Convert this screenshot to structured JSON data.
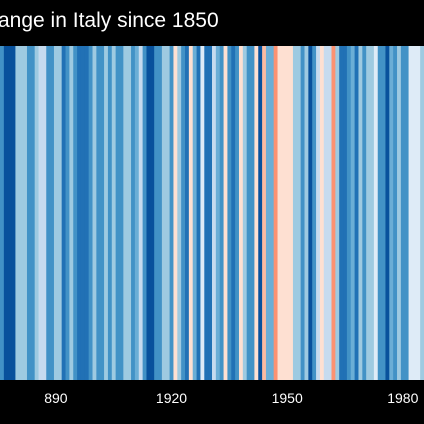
{
  "chart_data": {
    "type": "heatmap",
    "style": "warming stripes",
    "title": "ange in Italy since 1850",
    "x_first_year_visible": 1876,
    "x_tick_labels": [
      "890",
      "1920",
      "1950",
      "1980"
    ],
    "x_tick_years": [
      1890,
      1920,
      1950,
      1980
    ],
    "x_unit": "year",
    "values_note": "relative anomaly level per year, -1 (darkest blue) to +1 (darkest red)",
    "years": [
      1876,
      1877,
      1878,
      1879,
      1880,
      1881,
      1882,
      1883,
      1884,
      1885,
      1886,
      1887,
      1888,
      1889,
      1890,
      1891,
      1892,
      1893,
      1894,
      1895,
      1896,
      1897,
      1898,
      1899,
      1900,
      1901,
      1902,
      1903,
      1904,
      1905,
      1906,
      1907,
      1908,
      1909,
      1910,
      1911,
      1912,
      1913,
      1914,
      1915,
      1916,
      1917,
      1918,
      1919,
      1920,
      1921,
      1922,
      1923,
      1924,
      1925,
      1926,
      1927,
      1928,
      1929,
      1930,
      1931,
      1932,
      1933,
      1934,
      1935,
      1936,
      1937,
      1938,
      1939,
      1940,
      1941,
      1942,
      1943,
      1944,
      1945,
      1946,
      1947,
      1948,
      1949,
      1950,
      1951,
      1952,
      1953,
      1954,
      1955,
      1956,
      1957,
      1958,
      1959,
      1960,
      1961,
      1962,
      1963,
      1964,
      1965,
      1966,
      1967,
      1968,
      1969,
      1970,
      1971,
      1972,
      1973,
      1974,
      1975,
      1976,
      1977,
      1978,
      1979,
      1980,
      1981,
      1982,
      1983,
      1984,
      1985
    ],
    "values": [
      -0.55,
      -0.9,
      -0.9,
      -0.9,
      -0.2,
      -0.1,
      -0.1,
      -0.45,
      -0.45,
      -0.15,
      -0.05,
      -0.05,
      -0.45,
      -0.45,
      -0.15,
      -0.15,
      -0.75,
      -0.55,
      -0.2,
      -0.45,
      -0.75,
      -0.75,
      -0.75,
      -0.55,
      -0.2,
      -0.45,
      -0.45,
      -0.1,
      -0.45,
      -0.2,
      -0.55,
      -0.55,
      -0.2,
      -0.2,
      -0.55,
      -0.3,
      -0.05,
      -0.45,
      -0.9,
      -0.9,
      -0.45,
      -0.45,
      -0.2,
      -0.2,
      -0.55,
      0.3,
      -0.1,
      -0.45,
      -0.75,
      0.3,
      -0.3,
      -0.75,
      0.2,
      -0.75,
      -0.75,
      0.05,
      -0.3,
      -0.45,
      0.35,
      -0.45,
      -0.75,
      -0.45,
      0.3,
      -0.2,
      -0.55,
      -0.55,
      0.35,
      -0.9,
      0.45,
      -0.3,
      -0.3,
      0.7,
      0.35,
      0.35,
      0.35,
      0.35,
      -0.15,
      -0.15,
      -0.55,
      -0.2,
      -0.9,
      -0.45,
      -0.05,
      0.35,
      0.05,
      -0.05,
      0.7,
      -0.2,
      -0.75,
      -0.75,
      -0.45,
      -0.3,
      -0.75,
      -0.1,
      -0.45,
      -0.2,
      -0.15,
      0.15,
      -0.45,
      -0.45,
      -0.9,
      -0.3,
      -0.55,
      -0.2,
      -0.55,
      -0.45,
      0.1,
      0.1,
      0.1,
      -0.2
    ],
    "colors": {
      "background": "#000000",
      "text": "#ffffff",
      "ramp": [
        "#08306b",
        "#08519c",
        "#2171b5",
        "#4292c6",
        "#6baed6",
        "#9ecae1",
        "#c6dbef",
        "#deebf7",
        "#fee0d2",
        "#fcbba1",
        "#fc9272",
        "#fb6a4a",
        "#ef3b2c"
      ]
    },
    "grid": false,
    "legend": "none"
  }
}
